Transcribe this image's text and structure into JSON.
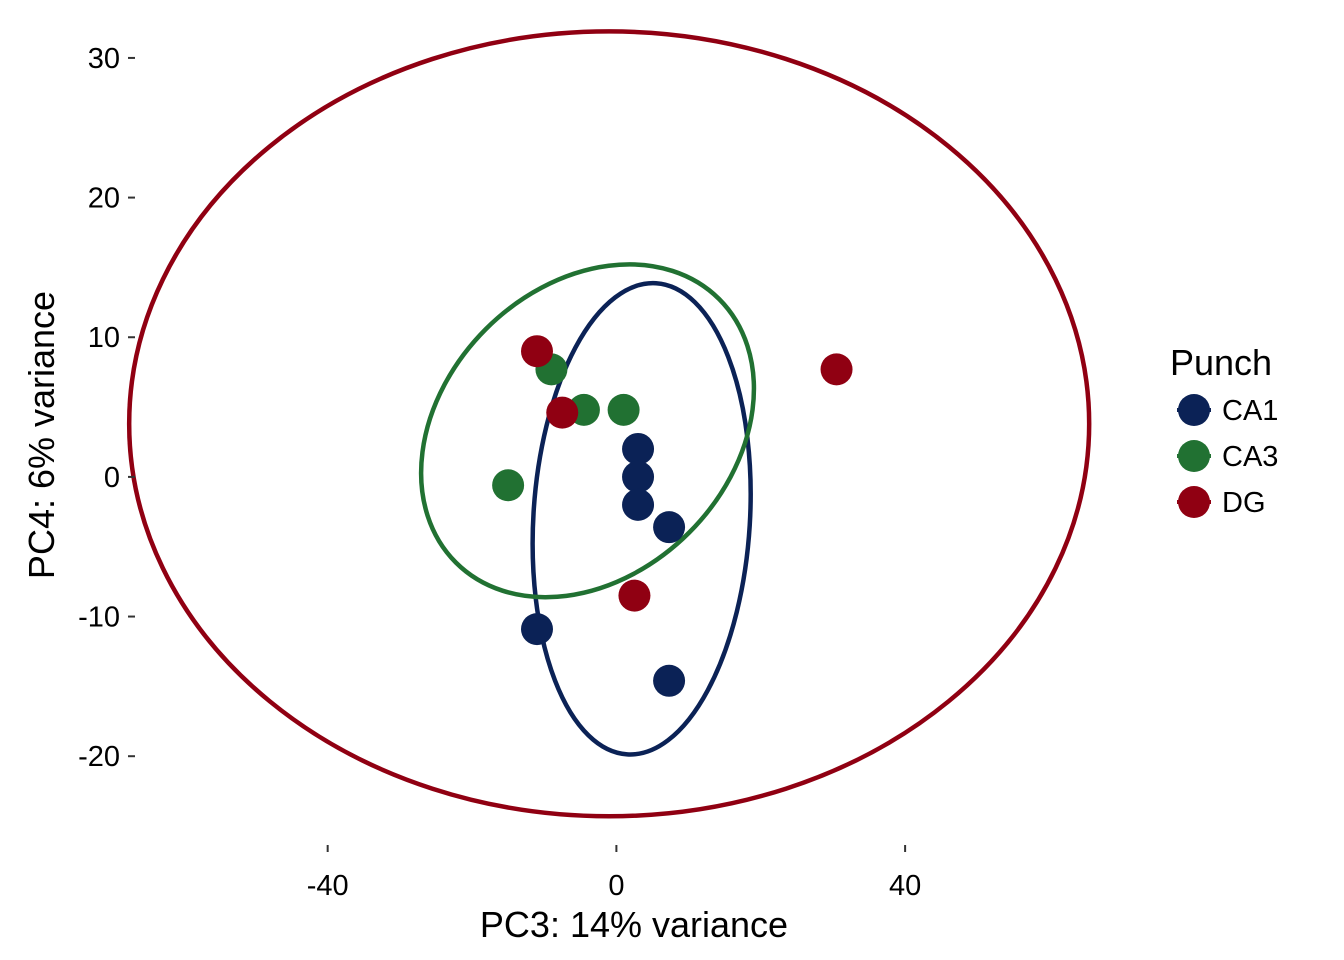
{
  "chart_data": {
    "type": "scatter",
    "title": "",
    "xlabel": "PC3: 14% variance",
    "ylabel": "PC4: 6% variance",
    "xlim": [
      -66,
      67
    ],
    "ylim": [
      -26,
      32
    ],
    "xticks": [
      -40,
      0,
      40
    ],
    "yticks": [
      -20,
      -10,
      0,
      10,
      20,
      30
    ],
    "grid": false,
    "legend": {
      "title": "Punch",
      "position": "right"
    },
    "series": [
      {
        "name": "CA1",
        "color": "#0b2256",
        "points": [
          [
            3,
            2
          ],
          [
            3,
            0
          ],
          [
            3,
            -2
          ],
          [
            7.3,
            -3.6
          ],
          [
            -11,
            -10.9
          ],
          [
            7.3,
            -14.6
          ]
        ],
        "ellipse": {
          "cx": 3.5,
          "cy": -3,
          "rx": 15,
          "ry": 16.9,
          "angle": 3.5
        }
      },
      {
        "name": "CA3",
        "color": "#217132",
        "points": [
          [
            -9,
            7.7
          ],
          [
            -4.5,
            4.8
          ],
          [
            1,
            4.8
          ],
          [
            -15,
            -0.6
          ]
        ],
        "ellipse": {
          "cx": -4,
          "cy": 3.3,
          "rx": 25.8,
          "ry": 10.3,
          "angle": -45
        }
      },
      {
        "name": "DG",
        "color": "#900012",
        "points": [
          [
            -11,
            9
          ],
          [
            -7.5,
            4.6
          ],
          [
            2.5,
            -8.5
          ],
          [
            30.5,
            7.7
          ]
        ],
        "ellipse": {
          "cx": -1,
          "cy": 3.8,
          "rx": 66.5,
          "ry": 28.1,
          "angle": 0
        }
      }
    ]
  }
}
